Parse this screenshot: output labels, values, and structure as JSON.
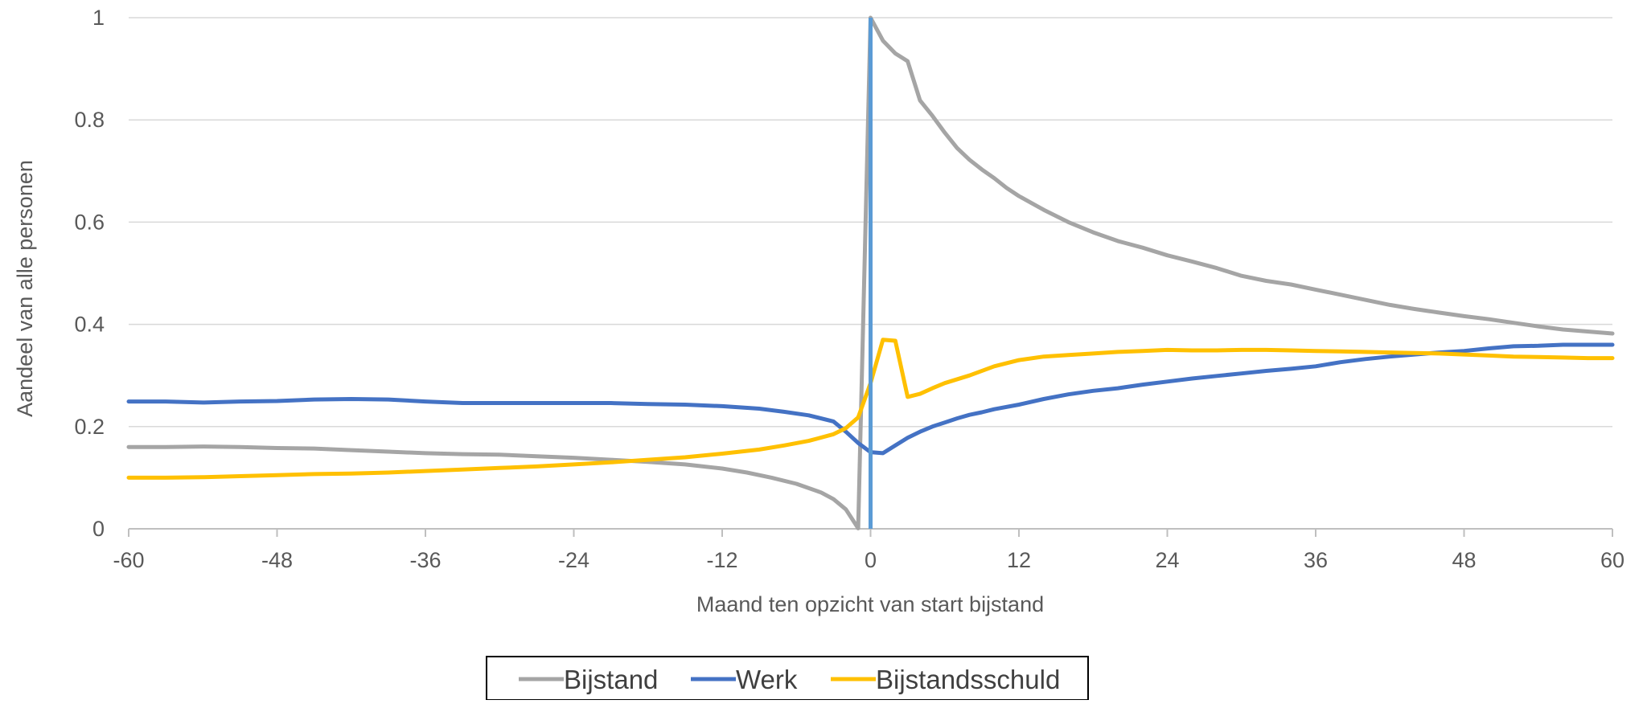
{
  "chart_data": {
    "type": "line",
    "title": "",
    "xlabel": "Maand ten opzicht van start bijstand",
    "ylabel": "Aandeel van alle personen",
    "xlim": [
      -60,
      60
    ],
    "ylim": [
      0,
      1
    ],
    "x_ticks": [
      -60,
      -48,
      -36,
      -24,
      -12,
      0,
      12,
      24,
      36,
      48,
      60
    ],
    "y_ticks": [
      0,
      0.2,
      0.4,
      0.6,
      0.8,
      1
    ],
    "y_tick_labels": [
      "0",
      "0.2",
      "0.4",
      "0.6",
      "0.8",
      "1"
    ],
    "grid": "horizontal",
    "legend_position": "bottom",
    "vertical_marker": {
      "x": 0,
      "color": "#5B9BD5"
    },
    "series": [
      {
        "name": "Bijstand",
        "color": "#A5A5A5",
        "points": [
          [
            -60,
            0.16
          ],
          [
            -57,
            0.16
          ],
          [
            -54,
            0.161
          ],
          [
            -51,
            0.16
          ],
          [
            -48,
            0.158
          ],
          [
            -45,
            0.157
          ],
          [
            -42,
            0.154
          ],
          [
            -39,
            0.151
          ],
          [
            -36,
            0.148
          ],
          [
            -33,
            0.146
          ],
          [
            -30,
            0.145
          ],
          [
            -27,
            0.142
          ],
          [
            -24,
            0.139
          ],
          [
            -21,
            0.135
          ],
          [
            -18,
            0.131
          ],
          [
            -15,
            0.126
          ],
          [
            -12,
            0.118
          ],
          [
            -10,
            0.11
          ],
          [
            -8,
            0.1
          ],
          [
            -6,
            0.088
          ],
          [
            -4,
            0.071
          ],
          [
            -3,
            0.058
          ],
          [
            -2,
            0.038
          ],
          [
            -1,
            0.001
          ],
          [
            0,
            1.0
          ],
          [
            1,
            0.955
          ],
          [
            2,
            0.93
          ],
          [
            3,
            0.915
          ],
          [
            4,
            0.838
          ],
          [
            5,
            0.808
          ],
          [
            6,
            0.775
          ],
          [
            7,
            0.745
          ],
          [
            8,
            0.722
          ],
          [
            9,
            0.703
          ],
          [
            10,
            0.686
          ],
          [
            11,
            0.667
          ],
          [
            12,
            0.651
          ],
          [
            14,
            0.624
          ],
          [
            16,
            0.6
          ],
          [
            18,
            0.58
          ],
          [
            20,
            0.563
          ],
          [
            22,
            0.55
          ],
          [
            24,
            0.535
          ],
          [
            26,
            0.523
          ],
          [
            28,
            0.51
          ],
          [
            30,
            0.495
          ],
          [
            32,
            0.485
          ],
          [
            34,
            0.478
          ],
          [
            36,
            0.468
          ],
          [
            38,
            0.458
          ],
          [
            40,
            0.448
          ],
          [
            42,
            0.438
          ],
          [
            44,
            0.43
          ],
          [
            46,
            0.423
          ],
          [
            48,
            0.416
          ],
          [
            50,
            0.41
          ],
          [
            52,
            0.403
          ],
          [
            54,
            0.396
          ],
          [
            56,
            0.39
          ],
          [
            58,
            0.386
          ],
          [
            60,
            0.382
          ]
        ]
      },
      {
        "name": "Werk",
        "color": "#4472C4",
        "points": [
          [
            -60,
            0.249
          ],
          [
            -57,
            0.249
          ],
          [
            -54,
            0.247
          ],
          [
            -51,
            0.249
          ],
          [
            -48,
            0.25
          ],
          [
            -45,
            0.253
          ],
          [
            -42,
            0.254
          ],
          [
            -39,
            0.253
          ],
          [
            -36,
            0.249
          ],
          [
            -33,
            0.246
          ],
          [
            -30,
            0.246
          ],
          [
            -27,
            0.246
          ],
          [
            -24,
            0.246
          ],
          [
            -21,
            0.246
          ],
          [
            -18,
            0.244
          ],
          [
            -15,
            0.243
          ],
          [
            -12,
            0.24
          ],
          [
            -9,
            0.235
          ],
          [
            -7,
            0.229
          ],
          [
            -5,
            0.222
          ],
          [
            -3,
            0.21
          ],
          [
            -2,
            0.19
          ],
          [
            -1,
            0.168
          ],
          [
            0,
            0.15
          ],
          [
            1,
            0.148
          ],
          [
            2,
            0.163
          ],
          [
            3,
            0.178
          ],
          [
            4,
            0.19
          ],
          [
            5,
            0.2
          ],
          [
            6,
            0.208
          ],
          [
            7,
            0.216
          ],
          [
            8,
            0.223
          ],
          [
            9,
            0.228
          ],
          [
            10,
            0.234
          ],
          [
            12,
            0.243
          ],
          [
            14,
            0.254
          ],
          [
            16,
            0.263
          ],
          [
            18,
            0.27
          ],
          [
            20,
            0.275
          ],
          [
            22,
            0.282
          ],
          [
            24,
            0.288
          ],
          [
            26,
            0.294
          ],
          [
            28,
            0.299
          ],
          [
            30,
            0.304
          ],
          [
            32,
            0.309
          ],
          [
            34,
            0.313
          ],
          [
            36,
            0.318
          ],
          [
            38,
            0.326
          ],
          [
            40,
            0.332
          ],
          [
            42,
            0.337
          ],
          [
            44,
            0.341
          ],
          [
            46,
            0.345
          ],
          [
            48,
            0.348
          ],
          [
            50,
            0.353
          ],
          [
            52,
            0.357
          ],
          [
            54,
            0.358
          ],
          [
            56,
            0.36
          ],
          [
            58,
            0.36
          ],
          [
            60,
            0.36
          ]
        ]
      },
      {
        "name": "Bijstandsschuld",
        "color": "#FFC000",
        "points": [
          [
            -60,
            0.1
          ],
          [
            -57,
            0.1
          ],
          [
            -54,
            0.101
          ],
          [
            -51,
            0.103
          ],
          [
            -48,
            0.105
          ],
          [
            -45,
            0.107
          ],
          [
            -42,
            0.108
          ],
          [
            -39,
            0.11
          ],
          [
            -36,
            0.113
          ],
          [
            -33,
            0.116
          ],
          [
            -30,
            0.119
          ],
          [
            -27,
            0.122
          ],
          [
            -24,
            0.126
          ],
          [
            -21,
            0.13
          ],
          [
            -18,
            0.135
          ],
          [
            -15,
            0.14
          ],
          [
            -12,
            0.147
          ],
          [
            -9,
            0.155
          ],
          [
            -7,
            0.163
          ],
          [
            -5,
            0.172
          ],
          [
            -3,
            0.185
          ],
          [
            -2,
            0.197
          ],
          [
            -1,
            0.218
          ],
          [
            0,
            0.285
          ],
          [
            1,
            0.37
          ],
          [
            2,
            0.368
          ],
          [
            3,
            0.258
          ],
          [
            4,
            0.264
          ],
          [
            5,
            0.275
          ],
          [
            6,
            0.285
          ],
          [
            8,
            0.3
          ],
          [
            10,
            0.318
          ],
          [
            12,
            0.33
          ],
          [
            14,
            0.337
          ],
          [
            16,
            0.34
          ],
          [
            18,
            0.343
          ],
          [
            20,
            0.346
          ],
          [
            22,
            0.348
          ],
          [
            24,
            0.35
          ],
          [
            26,
            0.349
          ],
          [
            28,
            0.349
          ],
          [
            30,
            0.35
          ],
          [
            32,
            0.35
          ],
          [
            34,
            0.349
          ],
          [
            36,
            0.348
          ],
          [
            38,
            0.347
          ],
          [
            40,
            0.346
          ],
          [
            42,
            0.345
          ],
          [
            44,
            0.344
          ],
          [
            46,
            0.343
          ],
          [
            48,
            0.341
          ],
          [
            50,
            0.339
          ],
          [
            52,
            0.337
          ],
          [
            54,
            0.336
          ],
          [
            56,
            0.335
          ],
          [
            58,
            0.334
          ],
          [
            60,
            0.334
          ]
        ]
      }
    ]
  }
}
